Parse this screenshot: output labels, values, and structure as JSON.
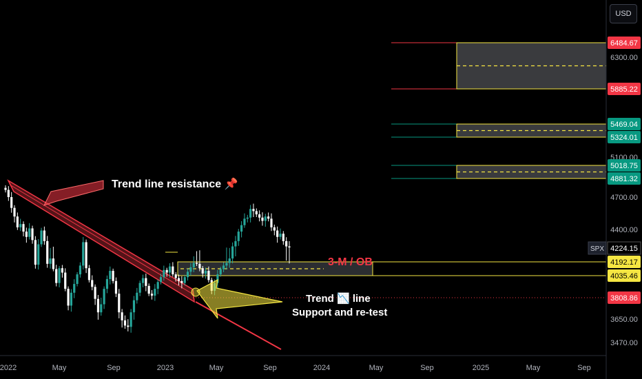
{
  "currency": "USD",
  "symbol": "SPX",
  "colors": {
    "background": "#000000",
    "up": "#26a69a",
    "down": "#ffffff",
    "trendline": "#f23645",
    "yellow": "#f5e642",
    "green": "#089981",
    "red": "#f23645",
    "tick_text": "#b2b5be"
  },
  "chart_data": {
    "type": "candlestick",
    "x_ticks": [
      "2022",
      "May",
      "Sep",
      "2023",
      "May",
      "Sep",
      "2024",
      "May",
      "Sep",
      "2025",
      "May",
      "Sep"
    ],
    "y_ticks": [
      "6300.00",
      "5100.00",
      "4700.00",
      "4400.00",
      "3650.00",
      "3470.00"
    ],
    "current_price": "4224.15",
    "price_tags": [
      {
        "value": "6484.67",
        "kind": "red"
      },
      {
        "value": "5885.22",
        "kind": "red"
      },
      {
        "value": "5469.04",
        "kind": "green"
      },
      {
        "value": "5324.01",
        "kind": "green"
      },
      {
        "value": "5018.75",
        "kind": "green"
      },
      {
        "value": "4881.32",
        "kind": "green"
      },
      {
        "value": "4192.17",
        "kind": "yellow"
      },
      {
        "value": "4035.46",
        "kind": "yellow"
      },
      {
        "value": "3808.86",
        "kind": "red"
      }
    ],
    "zones": [
      {
        "top": "6484.67",
        "bottom": "5885.22",
        "kind": "red"
      },
      {
        "top": "5469.04",
        "bottom": "5324.01",
        "kind": "green"
      },
      {
        "top": "5018.75",
        "bottom": "4881.32",
        "kind": "green"
      },
      {
        "top": "4192.17",
        "bottom": "4035.46",
        "kind": "yellow"
      }
    ],
    "annotations": {
      "resistance": "Trend line resistance 📌",
      "ob": "3-M / OB",
      "support_line1": "Trend 📉 line",
      "support_line2": "Support and re-test"
    }
  }
}
